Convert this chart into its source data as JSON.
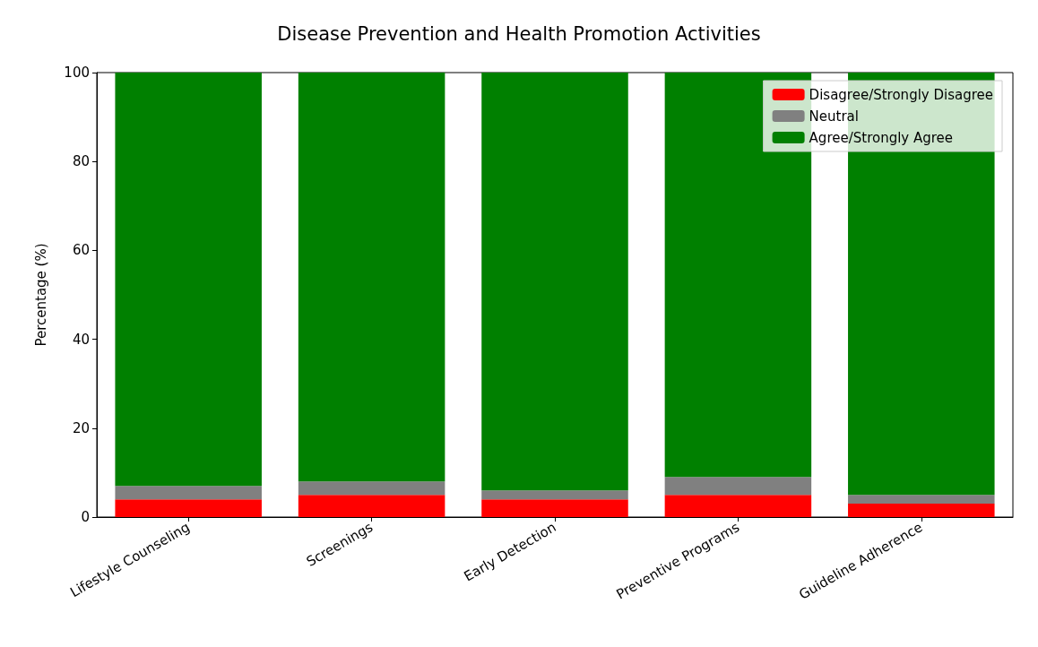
{
  "chart_data": {
    "type": "bar",
    "title": "Disease Prevention and Health Promotion Activities",
    "ylabel": "Percentage (%)",
    "categories": [
      "Lifestyle Counseling",
      "Screenings",
      "Early Detection",
      "Preventive Programs",
      "Guideline Adherence"
    ],
    "stacked": true,
    "series": [
      {
        "name": "Disagree/Strongly Disagree",
        "color": "#ff0000",
        "values": [
          4,
          5,
          4,
          5,
          3
        ]
      },
      {
        "name": "Neutral",
        "color": "#808080",
        "values": [
          3,
          3,
          2,
          4,
          2
        ]
      },
      {
        "name": "Agree/Strongly Agree",
        "color": "#008000",
        "values": [
          93,
          92,
          94,
          91,
          95
        ]
      }
    ],
    "ylim": [
      0,
      100
    ],
    "yticks": [
      0,
      20,
      40,
      60,
      80,
      100
    ],
    "grid": false,
    "legend": "top right"
  }
}
